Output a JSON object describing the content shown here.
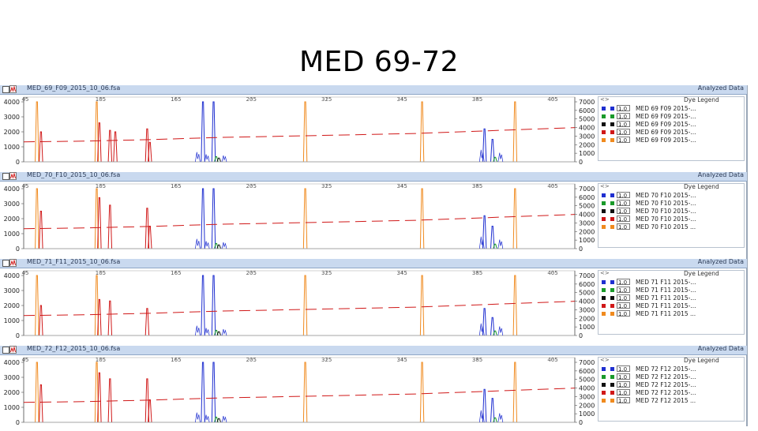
{
  "slide": {
    "title": "MED 69-72"
  },
  "panels": [
    {
      "sample_name": "MED_69_F09_2015_10_06.fsa",
      "analyzed_label": "Analyzed Data",
      "left_axis_ticks": [
        "4000",
        "3000",
        "2000",
        "1000",
        "0"
      ],
      "right_axis_ticks": [
        "7000",
        "6000",
        "5000",
        "4000",
        "3000",
        "2000",
        "1000",
        "0"
      ],
      "size_ticks": [
        "45",
        "105",
        "165",
        "205",
        "325",
        "345",
        "385",
        "405"
      ],
      "legend": {
        "title": "Dye Legend",
        "arrow": "<>",
        "rows": [
          {
            "scale": "1.0",
            "name": "MED 69 F09 2015-...",
            "color": "#1f2fd0"
          },
          {
            "scale": "1.0",
            "name": "MED 69 F09 2015-...",
            "color": "#1a9a2a"
          },
          {
            "scale": "1.0",
            "name": "MED 69 F09 2015-...",
            "color": "#111111"
          },
          {
            "scale": "1.0",
            "name": "MED 69 F09 2015-...",
            "color": "#d01818"
          },
          {
            "scale": "1.0",
            "name": "MED 69 F09 2015-...",
            "color": "#f08a1e"
          }
        ]
      }
    },
    {
      "sample_name": "MED_70_F10_2015_10_06.fsa",
      "analyzed_label": "Analyzed Data",
      "left_axis_ticks": [
        "4000",
        "3000",
        "2000",
        "1000",
        "0"
      ],
      "right_axis_ticks": [
        "7000",
        "6000",
        "5000",
        "4000",
        "3000",
        "2000",
        "1000",
        "0"
      ],
      "size_ticks": [
        "45",
        "105",
        "165",
        "205",
        "325",
        "345",
        "385",
        "405"
      ],
      "legend": {
        "title": "Dye Legend",
        "arrow": "<>",
        "rows": [
          {
            "scale": "1.0",
            "name": "MED 70 F10 2015-...",
            "color": "#1f2fd0"
          },
          {
            "scale": "1.0",
            "name": "MED 70 F10 2015-...",
            "color": "#1a9a2a"
          },
          {
            "scale": "1.0",
            "name": "MED 70 F10 2015-...",
            "color": "#111111"
          },
          {
            "scale": "1.0",
            "name": "MED 70 F10 2015-...",
            "color": "#d01818"
          },
          {
            "scale": "1.0",
            "name": "MED 70 F10 2015 ...",
            "color": "#f08a1e"
          }
        ]
      }
    },
    {
      "sample_name": "MED_71_F11_2015_10_06.fsa",
      "analyzed_label": "Analyzed Data",
      "left_axis_ticks": [
        "4000",
        "3000",
        "2000",
        "1000",
        "0"
      ],
      "right_axis_ticks": [
        "7000",
        "6000",
        "5000",
        "4000",
        "3000",
        "2000",
        "1000",
        "0"
      ],
      "size_ticks": [
        "45",
        "105",
        "165",
        "205",
        "325",
        "345",
        "385",
        "405"
      ],
      "legend": {
        "title": "Dye Legend",
        "arrow": "<>",
        "rows": [
          {
            "scale": "1.0",
            "name": "MED 71 F11 2015-...",
            "color": "#1f2fd0"
          },
          {
            "scale": "1.0",
            "name": "MED 71 F11 2015-...",
            "color": "#1a9a2a"
          },
          {
            "scale": "1.0",
            "name": "MED 71 F11 2015-...",
            "color": "#111111"
          },
          {
            "scale": "1.0",
            "name": "MED 71 F11 2015-...",
            "color": "#d01818"
          },
          {
            "scale": "1.0",
            "name": "MED 71 F11 2015 ...",
            "color": "#f08a1e"
          }
        ]
      }
    },
    {
      "sample_name": "MED_72_F12_2015_10_06.fsa",
      "analyzed_label": "Analyzed Data",
      "left_axis_ticks": [
        "4000",
        "3000",
        "2000",
        "1000",
        "0"
      ],
      "right_axis_ticks": [
        "7000",
        "6000",
        "5000",
        "4000",
        "3000",
        "2000",
        "1000",
        "0"
      ],
      "size_ticks": [
        "45",
        "105",
        "165",
        "205",
        "325",
        "345",
        "385",
        "405"
      ],
      "legend": {
        "title": "Dye Legend",
        "arrow": "<>",
        "rows": [
          {
            "scale": "1.0",
            "name": "MED 72 F12 2015-...",
            "color": "#1f2fd0"
          },
          {
            "scale": "1.0",
            "name": "MED 72 F12 2015-...",
            "color": "#1a9a2a"
          },
          {
            "scale": "1.0",
            "name": "MED 72 F12 2015-...",
            "color": "#111111"
          },
          {
            "scale": "1.0",
            "name": "MED 72 F12 2015-...",
            "color": "#d01818"
          },
          {
            "scale": "1.0",
            "name": "MED 72 F12 2015 ...",
            "color": "#f08a1e"
          }
        ]
      }
    }
  ],
  "chart_data": [
    {
      "type": "line",
      "panel": "MED_69_F09_2015_10_06.fsa",
      "xlim": [
        25,
        440
      ],
      "ylim": [
        0,
        4000
      ],
      "series": [
        {
          "name": "MED 69 F09 2015-...",
          "color": "#f08a1e",
          "peaks": [
            [
              35,
              4000
            ],
            [
              80,
              4000
            ],
            [
              237,
              4000
            ],
            [
              325,
              4000
            ],
            [
              395,
              4000
            ]
          ],
          "baseline": 20
        },
        {
          "name": "MED 69 F09 2015-...",
          "color": "#1f2fd0",
          "peaks": [
            [
              160,
              4000
            ],
            [
              168,
              4000
            ],
            [
              372,
              2200
            ],
            [
              378,
              1500
            ]
          ],
          "baseline": 20
        },
        {
          "name": "MED 69 F09 2015-...",
          "color": "#d01818",
          "peaks": [
            [
              38,
              2000
            ],
            [
              82,
              2600
            ],
            [
              90,
              2100
            ],
            [
              94,
              2000
            ],
            [
              118,
              2200
            ],
            [
              120,
              1300
            ]
          ],
          "baseline": 20
        },
        {
          "name": "MED 69 F09 2015-...",
          "color": "#1a9a2a",
          "peaks": [
            [
              170,
              350
            ],
            [
              380,
              300
            ]
          ],
          "baseline": 20
        },
        {
          "name": "MED 69 F09 2015-...",
          "color": "#111111",
          "peaks": [
            [
              172,
              250
            ]
          ],
          "baseline": 20
        }
      ],
      "size_standard_line": [
        [
          25,
          1330
        ],
        [
          70,
          1380
        ],
        [
          120,
          1480
        ],
        [
          170,
          1620
        ],
        [
          250,
          1760
        ],
        [
          320,
          1890
        ],
        [
          390,
          2120
        ],
        [
          440,
          2280
        ]
      ]
    },
    {
      "type": "line",
      "panel": "MED_70_F10_2015_10_06.fsa",
      "xlim": [
        25,
        440
      ],
      "ylim": [
        0,
        4000
      ],
      "series": [
        {
          "name": "MED 70 F10 2015-...",
          "color": "#f08a1e",
          "peaks": [
            [
              35,
              4000
            ],
            [
              80,
              4000
            ],
            [
              237,
              4000
            ],
            [
              325,
              4000
            ],
            [
              395,
              4000
            ]
          ],
          "baseline": 20
        },
        {
          "name": "MED 70 F10 2015-...",
          "color": "#1f2fd0",
          "peaks": [
            [
              160,
              4000
            ],
            [
              168,
              4000
            ],
            [
              372,
              2200
            ],
            [
              378,
              1500
            ]
          ],
          "baseline": 20
        },
        {
          "name": "MED 70 F10 2015-...",
          "color": "#d01818",
          "peaks": [
            [
              38,
              2500
            ],
            [
              82,
              3400
            ],
            [
              90,
              2900
            ],
            [
              118,
              2700
            ],
            [
              120,
              1500
            ]
          ],
          "baseline": 20
        },
        {
          "name": "MED 70 F10 2015-...",
          "color": "#1a9a2a",
          "peaks": [
            [
              170,
              350
            ],
            [
              380,
              300
            ]
          ],
          "baseline": 20
        },
        {
          "name": "MED 70 F10 2015-...",
          "color": "#111111",
          "peaks": [
            [
              172,
              250
            ]
          ],
          "baseline": 20
        }
      ],
      "size_standard_line": [
        [
          25,
          1330
        ],
        [
          70,
          1380
        ],
        [
          120,
          1480
        ],
        [
          170,
          1620
        ],
        [
          250,
          1760
        ],
        [
          320,
          1890
        ],
        [
          390,
          2120
        ],
        [
          440,
          2280
        ]
      ]
    },
    {
      "type": "line",
      "panel": "MED_71_F11_2015_10_06.fsa",
      "xlim": [
        25,
        440
      ],
      "ylim": [
        0,
        4000
      ],
      "series": [
        {
          "name": "MED 71 F11 2015-...",
          "color": "#f08a1e",
          "peaks": [
            [
              35,
              4000
            ],
            [
              80,
              4000
            ],
            [
              237,
              4000
            ],
            [
              325,
              4000
            ],
            [
              395,
              4000
            ]
          ],
          "baseline": 20
        },
        {
          "name": "MED 71 F11 2015-...",
          "color": "#1f2fd0",
          "peaks": [
            [
              160,
              4000
            ],
            [
              168,
              4000
            ],
            [
              372,
              1800
            ],
            [
              378,
              1200
            ]
          ],
          "baseline": 20
        },
        {
          "name": "MED 71 F11 2015-...",
          "color": "#d01818",
          "peaks": [
            [
              38,
              2000
            ],
            [
              82,
              2400
            ],
            [
              90,
              2300
            ],
            [
              118,
              1800
            ]
          ],
          "baseline": 20
        },
        {
          "name": "MED 71 F11 2015-...",
          "color": "#1a9a2a",
          "peaks": [
            [
              170,
              350
            ],
            [
              380,
              300
            ]
          ],
          "baseline": 20
        },
        {
          "name": "MED 71 F11 2015-...",
          "color": "#111111",
          "peaks": [
            [
              172,
              250
            ]
          ],
          "baseline": 20
        }
      ],
      "size_standard_line": [
        [
          25,
          1330
        ],
        [
          70,
          1380
        ],
        [
          120,
          1480
        ],
        [
          170,
          1620
        ],
        [
          250,
          1760
        ],
        [
          320,
          1890
        ],
        [
          390,
          2120
        ],
        [
          440,
          2280
        ]
      ]
    },
    {
      "type": "line",
      "panel": "MED_72_F12_2015_10_06.fsa",
      "xlim": [
        25,
        440
      ],
      "ylim": [
        0,
        4000
      ],
      "series": [
        {
          "name": "MED 72 F12 2015-...",
          "color": "#f08a1e",
          "peaks": [
            [
              35,
              4000
            ],
            [
              80,
              4000
            ],
            [
              237,
              4000
            ],
            [
              325,
              4000
            ],
            [
              395,
              4000
            ]
          ],
          "baseline": 20
        },
        {
          "name": "MED 72 F12 2015-...",
          "color": "#1f2fd0",
          "peaks": [
            [
              160,
              4000
            ],
            [
              168,
              4000
            ],
            [
              372,
              2200
            ],
            [
              378,
              1600
            ]
          ],
          "baseline": 20
        },
        {
          "name": "MED 72 F12 2015-...",
          "color": "#d01818",
          "peaks": [
            [
              38,
              2500
            ],
            [
              82,
              3300
            ],
            [
              90,
              2900
            ],
            [
              118,
              2900
            ],
            [
              120,
              1500
            ]
          ],
          "baseline": 20
        },
        {
          "name": "MED 72 F12 2015-...",
          "color": "#1a9a2a",
          "peaks": [
            [
              170,
              350
            ],
            [
              380,
              300
            ]
          ],
          "baseline": 20
        },
        {
          "name": "MED 72 F12 2015-...",
          "color": "#111111",
          "peaks": [
            [
              172,
              250
            ]
          ],
          "baseline": 20
        }
      ],
      "size_standard_line": [
        [
          25,
          1330
        ],
        [
          70,
          1380
        ],
        [
          120,
          1480
        ],
        [
          170,
          1620
        ],
        [
          250,
          1760
        ],
        [
          320,
          1890
        ],
        [
          390,
          2120
        ],
        [
          440,
          2280
        ]
      ]
    }
  ]
}
